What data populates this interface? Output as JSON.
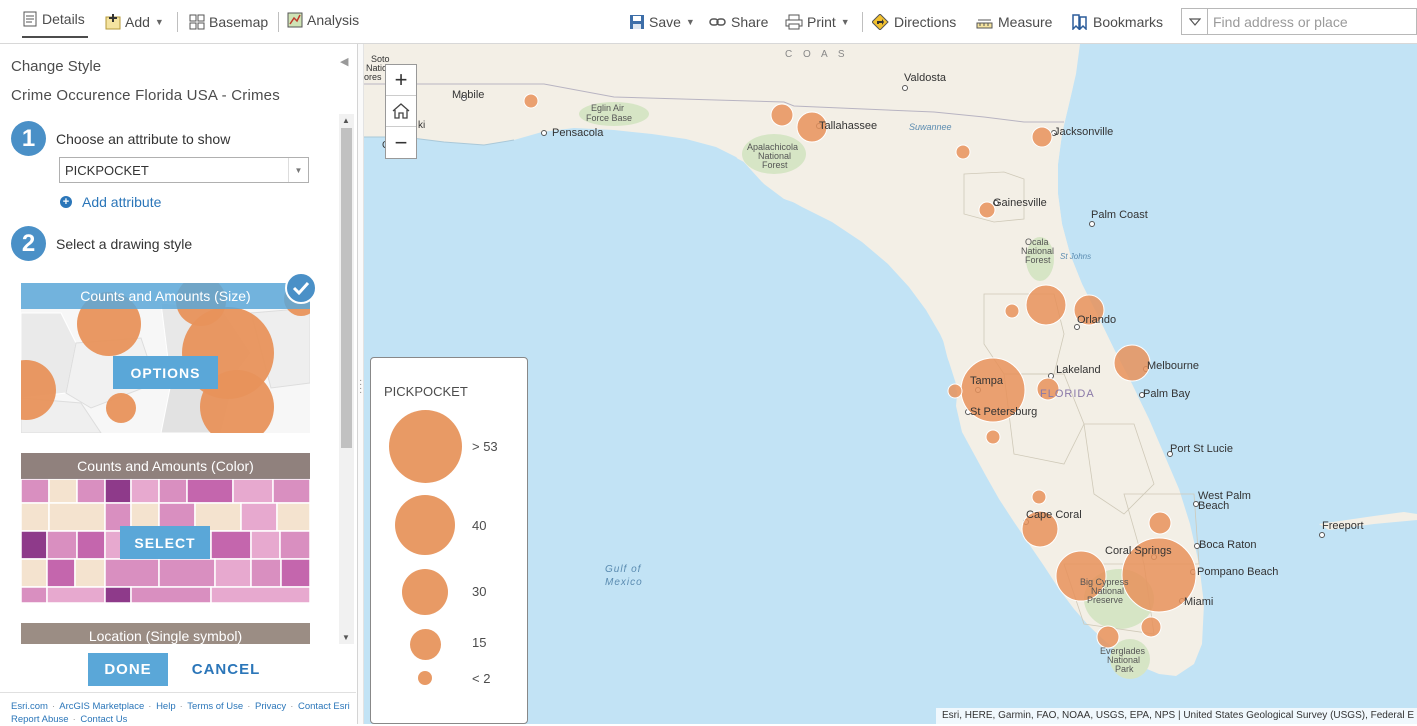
{
  "toolbar": {
    "details": "Details",
    "add": "Add",
    "basemap": "Basemap",
    "analysis": "Analysis",
    "save": "Save",
    "share": "Share",
    "print": "Print",
    "directions": "Directions",
    "measure": "Measure",
    "bookmarks": "Bookmarks",
    "search_placeholder": "Find address or place"
  },
  "panel": {
    "title": "Change Style",
    "layer_name": "Crime Occurence Florida USA - Crimes",
    "step1": {
      "number": "1",
      "label": "Choose an attribute to show"
    },
    "attribute_value": "PICKPOCKET",
    "add_attribute": "Add attribute",
    "step2": {
      "number": "2",
      "label": "Select a drawing style"
    },
    "styles": [
      {
        "label": "Counts and Amounts (Size)",
        "button": "OPTIONS",
        "selected": true
      },
      {
        "label": "Counts and Amounts (Color)",
        "button": "SELECT",
        "selected": false
      },
      {
        "label": "Location (Single symbol)"
      }
    ],
    "done": "DONE",
    "cancel": "CANCEL",
    "footer_links": [
      "Esri.com",
      "ArcGIS Marketplace",
      "Help",
      "Terms of Use",
      "Privacy",
      "Contact Esri",
      "Report Abuse",
      "Contact Us"
    ]
  },
  "map": {
    "legend": {
      "title": "PICKPOCKET",
      "items": [
        {
          "label": "> 53"
        },
        {
          "label": "40"
        },
        {
          "label": "30"
        },
        {
          "label": "15"
        },
        {
          "label": "< 2"
        }
      ]
    },
    "labels": {
      "valdosta": "Valdosta",
      "mobile": "Mobile",
      "soto": "Soto",
      "national": "National",
      "ores": "ores",
      "pensacola": "Pensacola",
      "eglin1": "Eglin Air",
      "eglin2": "Force Base",
      "tallahassee": "Tallahassee",
      "suwannee": "Suwannee",
      "jacksonville": "Jacksonville",
      "apal1": "Apalachicola",
      "apal2": "National",
      "apal3": "Forest",
      "coast": "C O A S",
      "gainesville": "Gainesville",
      "palmcoast": "Palm Coast",
      "ocala1": "Ocala",
      "ocala2": "National",
      "ocala3": "Forest",
      "stjohns": "St Johns",
      "orlando": "Orlando",
      "melbourne": "Melbourne",
      "lakeland": "Lakeland",
      "tampa": "Tampa",
      "florida": "FLORIDA",
      "palmbay": "Palm Bay",
      "stpete": "St Petersburg",
      "portstlucie": "Port St Lucie",
      "westpalm1": "West Palm",
      "westpalm2": "Beach",
      "freeport": "Freeport",
      "capecoral": "Cape Coral",
      "coralsprings": "Coral Springs",
      "bocaraton": "Boca Raton",
      "pompano": "Pompano Beach",
      "miami": "Miami",
      "bigcy1": "Big Cypress",
      "bigcy2": "National",
      "bigcy3": "Preserve",
      "ever1": "Everglades",
      "ever2": "National",
      "ever3": "Park",
      "gulf1": "Gulf of",
      "gulf2": "Mexico",
      "ki": "ki",
      "g": "G"
    },
    "attribution": "Esri, HERE, Garmin, FAO, NOAA, USGS, EPA, NPS | United States Geological Survey (USGS), Federal E"
  },
  "colors": {
    "accent": "#4a90c7",
    "button": "#5aa7d8",
    "link": "#2b76b9",
    "symbol": "#e89a65",
    "water": "#c2e3f5",
    "land": "#f3efe6"
  },
  "icons": {
    "details": "details-icon",
    "add": "add-icon",
    "basemap": "basemap-icon",
    "analysis": "analysis-icon",
    "save": "save-icon",
    "share": "share-icon",
    "print": "print-icon",
    "directions": "directions-icon",
    "measure": "measure-icon",
    "bookmarks": "bookmarks-icon"
  }
}
